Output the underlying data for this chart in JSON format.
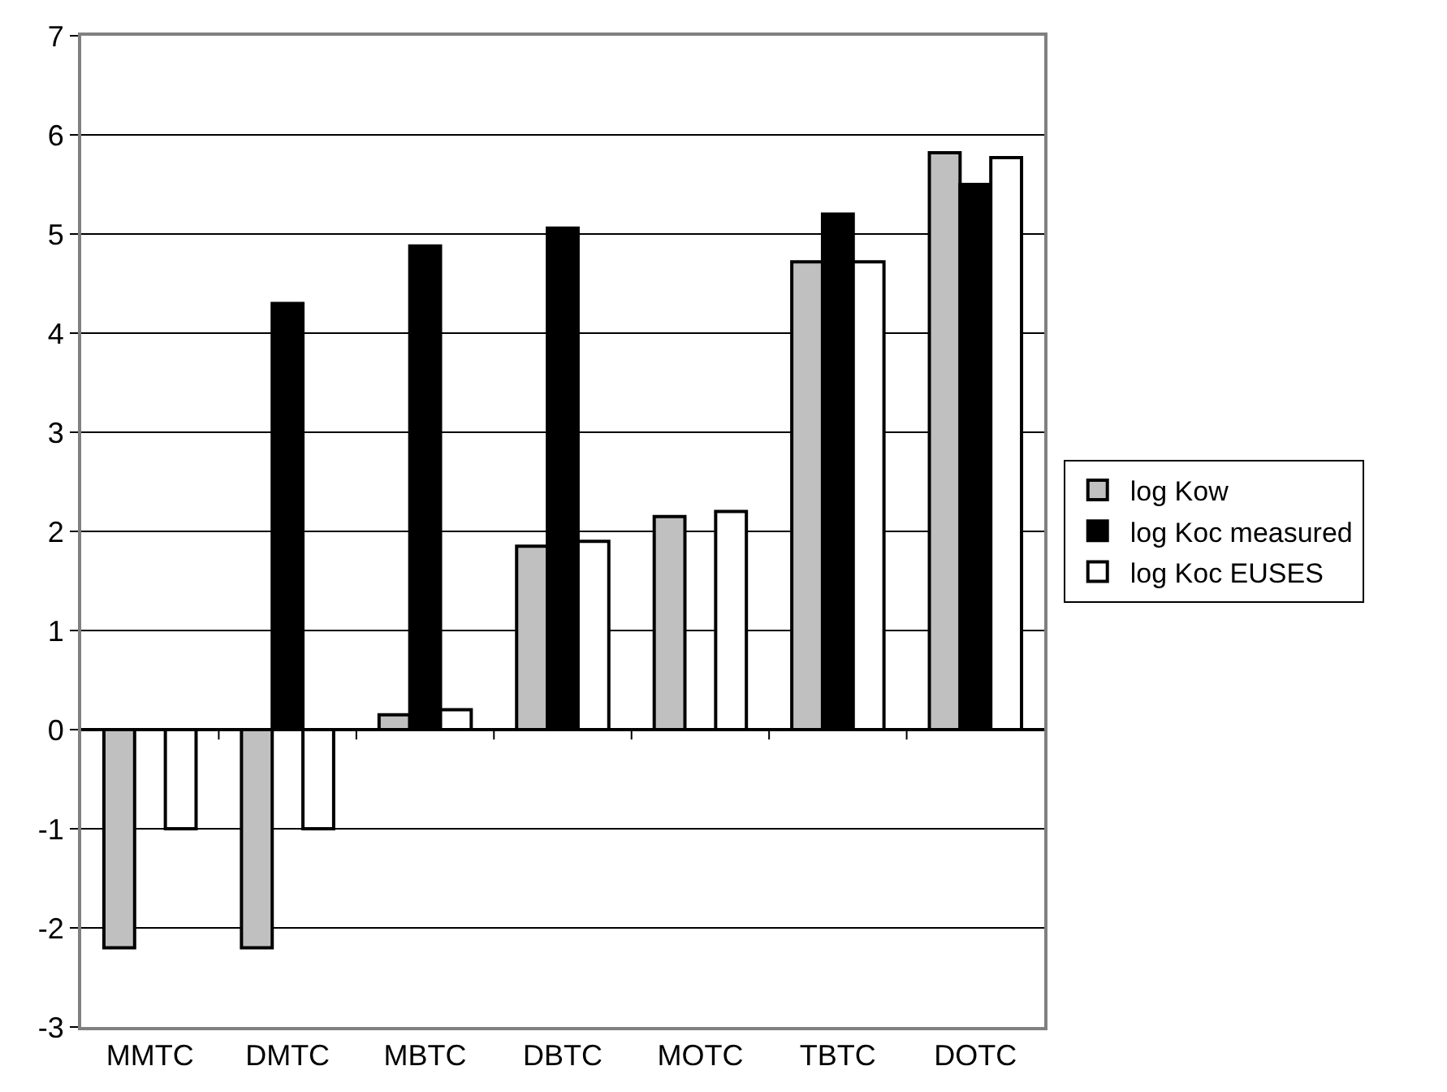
{
  "chart_data": {
    "type": "bar",
    "categories": [
      "MMTC",
      "DMTC",
      "MBTC",
      "DBTC",
      "MOTC",
      "TBTC",
      "DOTC"
    ],
    "series": [
      {
        "name": "log Kow",
        "color": "#c0c0c0",
        "values": [
          -2.2,
          -2.2,
          0.15,
          1.85,
          2.15,
          4.72,
          5.82
        ]
      },
      {
        "name": "log Koc measured",
        "color": "#000000",
        "values": [
          null,
          4.3,
          4.88,
          5.06,
          null,
          5.2,
          5.5
        ]
      },
      {
        "name": "log Koc EUSES",
        "color": "#ffffff",
        "values": [
          -1,
          -1,
          0.2,
          1.9,
          2.2,
          4.72,
          5.77
        ]
      }
    ],
    "ylim": [
      -3,
      7
    ],
    "yticks": [
      -3,
      -2,
      -1,
      0,
      1,
      2,
      3,
      4,
      5,
      6,
      7
    ],
    "grid": "y",
    "legend": "right"
  }
}
